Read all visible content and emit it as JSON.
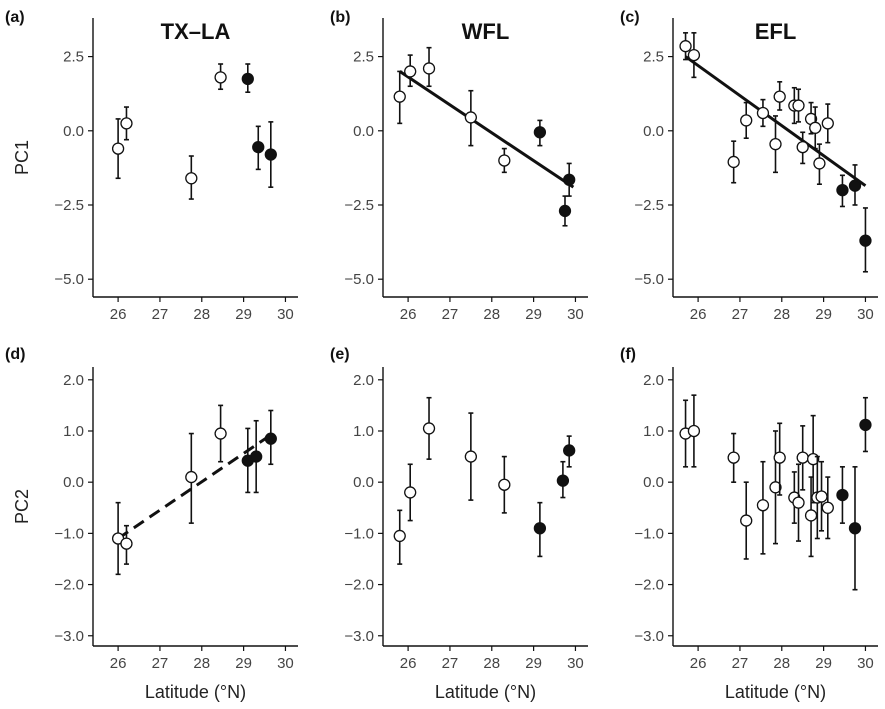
{
  "figure": {
    "column_titles": [
      "TX–LA",
      "WFL",
      "EFL"
    ],
    "xlabel": "Latitude (°N)",
    "row_ylabels": [
      "PC1",
      "PC2"
    ]
  },
  "colors": {
    "ink": "#111111",
    "open_fill": "#ffffff",
    "filled": "#111111"
  },
  "chart_data": [
    {
      "panel": "(a)",
      "title": "TX–LA",
      "type": "scatter",
      "xlabel": "",
      "ylabel": "PC1",
      "xlim": [
        25.4,
        30.3
      ],
      "ylim": [
        -5.6,
        3.8
      ],
      "xticks": [
        26,
        27,
        28,
        29,
        30
      ],
      "yticks": [
        -5.0,
        -2.5,
        0.0,
        2.5
      ],
      "ytick_labels": [
        "−5.0",
        "−2.5",
        "0.0",
        "2.5"
      ],
      "points": [
        {
          "x": 26.0,
          "y": -0.6,
          "lo": -1.6,
          "hi": 0.4,
          "filled": false
        },
        {
          "x": 26.2,
          "y": 0.25,
          "lo": -0.3,
          "hi": 0.8,
          "filled": false
        },
        {
          "x": 27.75,
          "y": -1.6,
          "lo": -2.3,
          "hi": -0.85,
          "filled": false
        },
        {
          "x": 28.45,
          "y": 1.8,
          "lo": 1.4,
          "hi": 2.25,
          "filled": false
        },
        {
          "x": 29.1,
          "y": 1.75,
          "lo": 1.3,
          "hi": 2.25,
          "filled": true
        },
        {
          "x": 29.35,
          "y": -0.55,
          "lo": -1.3,
          "hi": 0.15,
          "filled": true
        },
        {
          "x": 29.65,
          "y": -0.8,
          "lo": -1.9,
          "hi": 0.3,
          "filled": true
        }
      ],
      "fit": null
    },
    {
      "panel": "(b)",
      "title": "WFL",
      "type": "scatter",
      "xlabel": "",
      "ylabel": "",
      "xlim": [
        25.4,
        30.3
      ],
      "ylim": [
        -5.6,
        3.8
      ],
      "xticks": [
        26,
        27,
        28,
        29,
        30
      ],
      "yticks": [
        -5.0,
        -2.5,
        0.0,
        2.5
      ],
      "ytick_labels": [
        "−5.0",
        "−2.5",
        "0.0",
        "2.5"
      ],
      "points": [
        {
          "x": 25.8,
          "y": 1.15,
          "lo": 0.25,
          "hi": 2.0,
          "filled": false
        },
        {
          "x": 26.05,
          "y": 2.0,
          "lo": 1.5,
          "hi": 2.55,
          "filled": false
        },
        {
          "x": 26.5,
          "y": 2.1,
          "lo": 1.5,
          "hi": 2.8,
          "filled": false
        },
        {
          "x": 27.5,
          "y": 0.45,
          "lo": -0.5,
          "hi": 1.35,
          "filled": false
        },
        {
          "x": 28.3,
          "y": -1.0,
          "lo": -1.4,
          "hi": -0.6,
          "filled": false
        },
        {
          "x": 29.15,
          "y": -0.05,
          "lo": -0.5,
          "hi": 0.35,
          "filled": true
        },
        {
          "x": 29.75,
          "y": -2.7,
          "lo": -3.2,
          "hi": -2.2,
          "filled": true
        },
        {
          "x": 29.85,
          "y": -1.65,
          "lo": -2.2,
          "hi": -1.1,
          "filled": true
        }
      ],
      "fit": {
        "x": [
          25.8,
          29.95
        ],
        "y": [
          2.0,
          -1.9
        ],
        "style": "solid"
      }
    },
    {
      "panel": "(c)",
      "title": "EFL",
      "type": "scatter",
      "xlabel": "",
      "ylabel": "",
      "xlim": [
        25.4,
        30.3
      ],
      "ylim": [
        -5.6,
        3.8
      ],
      "xticks": [
        26,
        27,
        28,
        29,
        30
      ],
      "yticks": [
        -5.0,
        -2.5,
        0.0,
        2.5
      ],
      "ytick_labels": [
        "−5.0",
        "−2.5",
        "0.0",
        "2.5"
      ],
      "points": [
        {
          "x": 25.7,
          "y": 2.85,
          "lo": 2.4,
          "hi": 3.3,
          "filled": false
        },
        {
          "x": 25.9,
          "y": 2.55,
          "lo": 1.8,
          "hi": 3.3,
          "filled": false
        },
        {
          "x": 26.85,
          "y": -1.05,
          "lo": -1.75,
          "hi": -0.35,
          "filled": false
        },
        {
          "x": 27.15,
          "y": 0.35,
          "lo": -0.25,
          "hi": 0.95,
          "filled": false
        },
        {
          "x": 27.55,
          "y": 0.6,
          "lo": 0.15,
          "hi": 1.05,
          "filled": false
        },
        {
          "x": 27.85,
          "y": -0.45,
          "lo": -1.4,
          "hi": 0.5,
          "filled": false
        },
        {
          "x": 27.95,
          "y": 1.15,
          "lo": 0.7,
          "hi": 1.65,
          "filled": false
        },
        {
          "x": 28.3,
          "y": 0.85,
          "lo": 0.25,
          "hi": 1.45,
          "filled": false
        },
        {
          "x": 28.4,
          "y": 0.85,
          "lo": 0.3,
          "hi": 1.4,
          "filled": false
        },
        {
          "x": 28.5,
          "y": -0.55,
          "lo": -1.1,
          "hi": -0.05,
          "filled": false
        },
        {
          "x": 28.7,
          "y": 0.4,
          "lo": -0.1,
          "hi": 0.95,
          "filled": false
        },
        {
          "x": 28.8,
          "y": 0.1,
          "lo": -0.6,
          "hi": 0.8,
          "filled": false
        },
        {
          "x": 28.9,
          "y": -1.1,
          "lo": -1.8,
          "hi": -0.45,
          "filled": false
        },
        {
          "x": 29.1,
          "y": 0.25,
          "lo": -0.4,
          "hi": 0.9,
          "filled": false
        },
        {
          "x": 29.45,
          "y": -2.0,
          "lo": -2.55,
          "hi": -1.5,
          "filled": true
        },
        {
          "x": 29.75,
          "y": -1.85,
          "lo": -2.5,
          "hi": -1.15,
          "filled": true
        },
        {
          "x": 30.0,
          "y": -3.7,
          "lo": -4.75,
          "hi": -2.6,
          "filled": true
        }
      ],
      "fit": {
        "x": [
          25.7,
          30.0
        ],
        "y": [
          2.5,
          -1.85
        ],
        "style": "solid"
      }
    },
    {
      "panel": "(d)",
      "title": "",
      "type": "scatter",
      "xlabel": "Latitude (°N)",
      "ylabel": "PC2",
      "xlim": [
        25.4,
        30.3
      ],
      "ylim": [
        -3.2,
        2.25
      ],
      "xticks": [
        26,
        27,
        28,
        29,
        30
      ],
      "yticks": [
        -3.0,
        -2.0,
        -1.0,
        0.0,
        1.0,
        2.0
      ],
      "ytick_labels": [
        "−3.0",
        "−2.0",
        "−1.0",
        "0.0",
        "1.0",
        "2.0"
      ],
      "points": [
        {
          "x": 26.0,
          "y": -1.1,
          "lo": -1.8,
          "hi": -0.4,
          "filled": false
        },
        {
          "x": 26.2,
          "y": -1.2,
          "lo": -1.6,
          "hi": -0.85,
          "filled": false
        },
        {
          "x": 27.75,
          "y": 0.1,
          "lo": -0.8,
          "hi": 0.95,
          "filled": false
        },
        {
          "x": 28.45,
          "y": 0.95,
          "lo": 0.4,
          "hi": 1.5,
          "filled": false
        },
        {
          "x": 29.1,
          "y": 0.42,
          "lo": -0.2,
          "hi": 1.05,
          "filled": true
        },
        {
          "x": 29.3,
          "y": 0.5,
          "lo": -0.2,
          "hi": 1.2,
          "filled": true
        },
        {
          "x": 29.65,
          "y": 0.85,
          "lo": 0.35,
          "hi": 1.4,
          "filled": true
        }
      ],
      "fit": {
        "x": [
          26.0,
          29.7
        ],
        "y": [
          -1.1,
          0.95
        ],
        "style": "dashed"
      }
    },
    {
      "panel": "(e)",
      "title": "",
      "type": "scatter",
      "xlabel": "Latitude (°N)",
      "ylabel": "",
      "xlim": [
        25.4,
        30.3
      ],
      "ylim": [
        -3.2,
        2.25
      ],
      "xticks": [
        26,
        27,
        28,
        29,
        30
      ],
      "yticks": [
        -3.0,
        -2.0,
        -1.0,
        0.0,
        1.0,
        2.0
      ],
      "ytick_labels": [
        "−3.0",
        "−2.0",
        "−1.0",
        "0.0",
        "1.0",
        "2.0"
      ],
      "points": [
        {
          "x": 25.8,
          "y": -1.05,
          "lo": -1.6,
          "hi": -0.55,
          "filled": false
        },
        {
          "x": 26.05,
          "y": -0.2,
          "lo": -0.75,
          "hi": 0.35,
          "filled": false
        },
        {
          "x": 26.5,
          "y": 1.05,
          "lo": 0.45,
          "hi": 1.65,
          "filled": false
        },
        {
          "x": 27.5,
          "y": 0.5,
          "lo": -0.35,
          "hi": 1.35,
          "filled": false
        },
        {
          "x": 28.3,
          "y": -0.05,
          "lo": -0.6,
          "hi": 0.5,
          "filled": false
        },
        {
          "x": 29.15,
          "y": -0.9,
          "lo": -1.45,
          "hi": -0.4,
          "filled": true
        },
        {
          "x": 29.7,
          "y": 0.03,
          "lo": -0.3,
          "hi": 0.4,
          "filled": true
        },
        {
          "x": 29.85,
          "y": 0.62,
          "lo": 0.3,
          "hi": 0.9,
          "filled": true
        }
      ],
      "fit": null
    },
    {
      "panel": "(f)",
      "title": "",
      "type": "scatter",
      "xlabel": "Latitude (°N)",
      "ylabel": "",
      "xlim": [
        25.4,
        30.3
      ],
      "ylim": [
        -3.2,
        2.25
      ],
      "xticks": [
        26,
        27,
        28,
        29,
        30
      ],
      "yticks": [
        -3.0,
        -2.0,
        -1.0,
        0.0,
        1.0,
        2.0
      ],
      "ytick_labels": [
        "−3.0",
        "−2.0",
        "−1.0",
        "0.0",
        "1.0",
        "2.0"
      ],
      "points": [
        {
          "x": 25.7,
          "y": 0.95,
          "lo": 0.3,
          "hi": 1.6,
          "filled": false
        },
        {
          "x": 25.9,
          "y": 1.0,
          "lo": 0.3,
          "hi": 1.7,
          "filled": false
        },
        {
          "x": 26.85,
          "y": 0.48,
          "lo": 0.0,
          "hi": 0.95,
          "filled": false
        },
        {
          "x": 27.15,
          "y": -0.75,
          "lo": -1.5,
          "hi": 0.0,
          "filled": false
        },
        {
          "x": 27.55,
          "y": -0.45,
          "lo": -1.4,
          "hi": 0.4,
          "filled": false
        },
        {
          "x": 27.85,
          "y": -0.1,
          "lo": -1.2,
          "hi": 1.0,
          "filled": false
        },
        {
          "x": 27.95,
          "y": 0.48,
          "lo": -0.25,
          "hi": 1.15,
          "filled": false
        },
        {
          "x": 28.3,
          "y": -0.3,
          "lo": -0.8,
          "hi": 0.2,
          "filled": false
        },
        {
          "x": 28.4,
          "y": -0.4,
          "lo": -1.15,
          "hi": 0.35,
          "filled": false
        },
        {
          "x": 28.5,
          "y": 0.48,
          "lo": -0.15,
          "hi": 1.1,
          "filled": false
        },
        {
          "x": 28.7,
          "y": -0.65,
          "lo": -1.45,
          "hi": 0.1,
          "filled": false
        },
        {
          "x": 28.75,
          "y": 0.45,
          "lo": -0.4,
          "hi": 1.3,
          "filled": false
        },
        {
          "x": 28.85,
          "y": -0.3,
          "lo": -1.1,
          "hi": 0.5,
          "filled": false
        },
        {
          "x": 28.95,
          "y": -0.28,
          "lo": -0.95,
          "hi": 0.4,
          "filled": false
        },
        {
          "x": 29.1,
          "y": -0.5,
          "lo": -1.1,
          "hi": 0.1,
          "filled": false
        },
        {
          "x": 29.45,
          "y": -0.25,
          "lo": -0.8,
          "hi": 0.3,
          "filled": true
        },
        {
          "x": 29.75,
          "y": -0.9,
          "lo": -2.1,
          "hi": 0.3,
          "filled": true
        },
        {
          "x": 30.0,
          "y": 1.12,
          "lo": 0.6,
          "hi": 1.65,
          "filled": true
        }
      ],
      "fit": null
    }
  ]
}
